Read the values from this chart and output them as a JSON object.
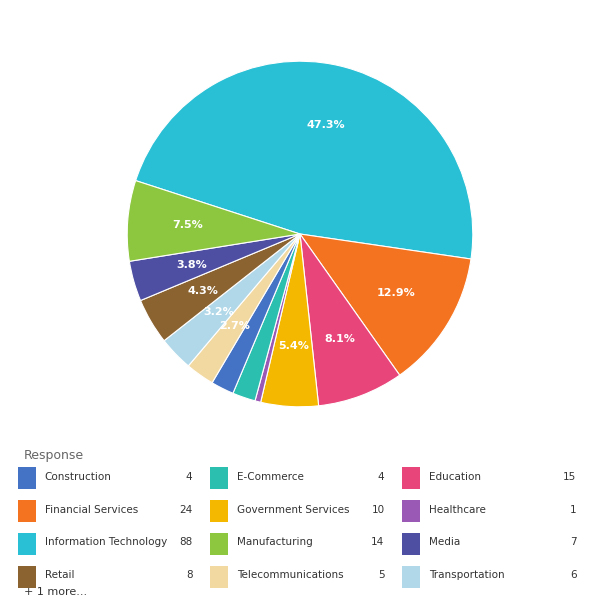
{
  "labels_ordered": [
    "Information Technology",
    "Financial Services",
    "Education",
    "Government Services",
    "Healthcare",
    "E-Commerce",
    "Construction",
    "Telecommunications",
    "Transportation",
    "Retail",
    "Media",
    "Manufacturing"
  ],
  "values_ordered": [
    88,
    24,
    15,
    10,
    1,
    4,
    4,
    5,
    6,
    8,
    7,
    14
  ],
  "colors_ordered": [
    "#29BFD4",
    "#F47321",
    "#E8457A",
    "#F5B800",
    "#9B59B6",
    "#2BBFB0",
    "#4472C4",
    "#F2D9A2",
    "#B0D8E8",
    "#8B6331",
    "#4E4FA3",
    "#8DC63F"
  ],
  "pct_threshold": 2.5,
  "legend_title": "Response",
  "legend_items": [
    {
      "label": "Construction",
      "count": 4,
      "color": "#4472C4"
    },
    {
      "label": "E-Commerce",
      "count": 4,
      "color": "#2BBFB0"
    },
    {
      "label": "Education",
      "count": 15,
      "color": "#E8457A"
    },
    {
      "label": "Financial Services",
      "count": 24,
      "color": "#F47321"
    },
    {
      "label": "Government Services",
      "count": 10,
      "color": "#F5B800"
    },
    {
      "label": "Healthcare",
      "count": 1,
      "color": "#9B59B6"
    },
    {
      "label": "Information Technology",
      "count": 88,
      "color": "#29BFD4"
    },
    {
      "label": "Manufacturing",
      "count": 14,
      "color": "#8DC63F"
    },
    {
      "label": "Media",
      "count": 7,
      "color": "#4E4FA3"
    },
    {
      "label": "Retail",
      "count": 8,
      "color": "#8B6331"
    },
    {
      "label": "Telecommunications",
      "count": 5,
      "color": "#F2D9A2"
    },
    {
      "label": "Transportation",
      "count": 6,
      "color": "#B0D8E8"
    }
  ],
  "extra_note": "+ 1 more...",
  "startangle": 162,
  "fig_width": 6.0,
  "fig_height": 6.0
}
